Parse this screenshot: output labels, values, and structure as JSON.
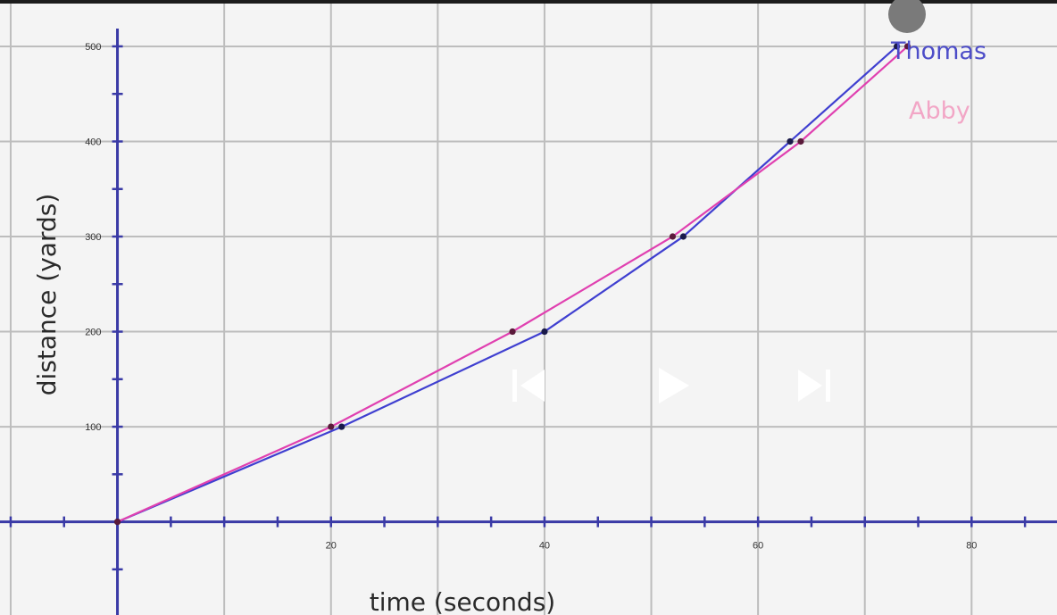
{
  "player": {
    "controls": [
      {
        "name": "skip-back-button",
        "icon": "skip-back-icon"
      },
      {
        "name": "play-button",
        "icon": "play-icon"
      },
      {
        "name": "skip-forward-button",
        "icon": "skip-forward-icon"
      }
    ]
  },
  "chart_data": {
    "type": "line",
    "xlabel": "time (seconds)",
    "ylabel": "distance (yards)",
    "xlim": [
      -11,
      88
    ],
    "ylim": [
      -98,
      545
    ],
    "x_ticks": [
      20,
      40,
      60,
      80
    ],
    "y_ticks": [
      100,
      200,
      300,
      400,
      500
    ],
    "x_grid_step": 10,
    "y_grid_step": 100,
    "grid": true,
    "series": [
      {
        "name": "Thomas",
        "color": "#3f3fd0",
        "points": [
          [
            0,
            0
          ],
          [
            21,
            100
          ],
          [
            40,
            200
          ],
          [
            53,
            300
          ],
          [
            63,
            400
          ],
          [
            73,
            500
          ]
        ]
      },
      {
        "name": "Abby",
        "color": "#e040b0",
        "points": [
          [
            0,
            0
          ],
          [
            20,
            100
          ],
          [
            37,
            200
          ],
          [
            52,
            300
          ],
          [
            64,
            400
          ],
          [
            74,
            500
          ]
        ]
      }
    ]
  }
}
